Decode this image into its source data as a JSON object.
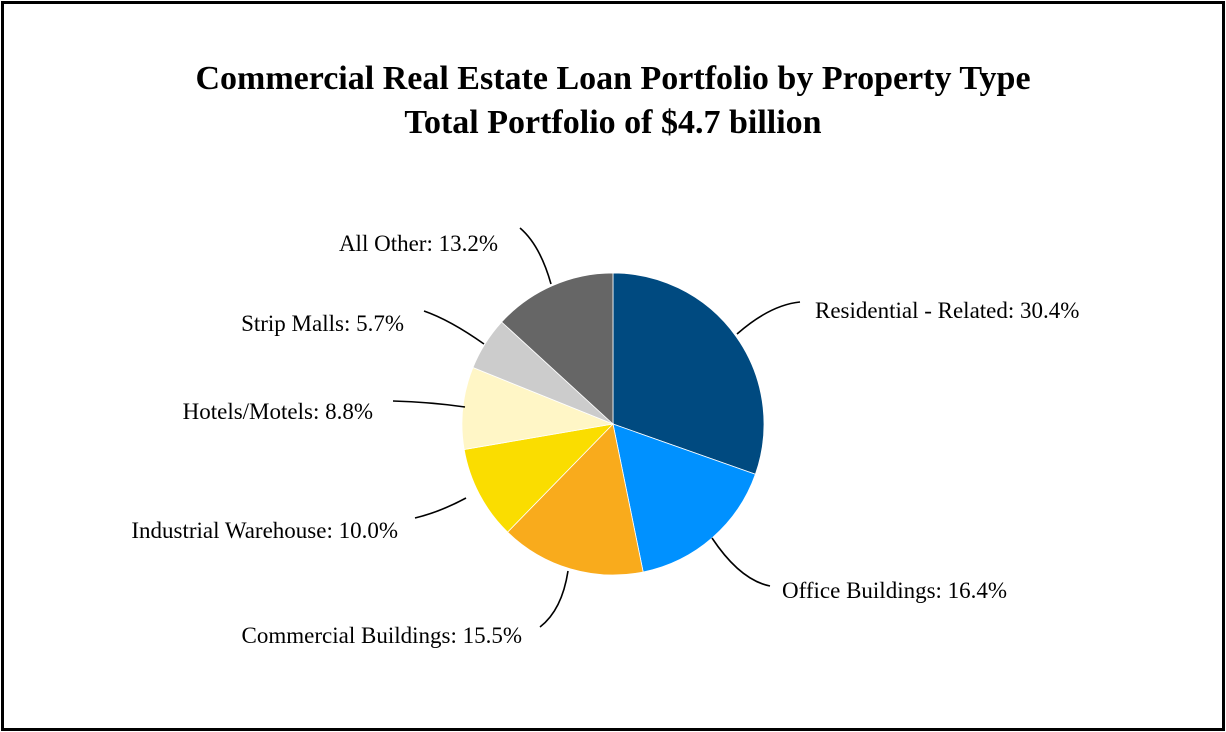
{
  "chart_data": {
    "type": "pie",
    "title": "Commercial Real Estate Loan Portfolio by Property Type",
    "subtitle": "Total Portfolio of $4.7 billion",
    "start_angle": "12 o'clock",
    "direction": "clockwise",
    "slices": [
      {
        "label": "Residential - Related",
        "value": 30.4,
        "display": "Residential - Related: 30.4%",
        "color": "#004A80"
      },
      {
        "label": "Office Buildings",
        "value": 16.4,
        "display": "Office Buildings: 16.4%",
        "color": "#0091FF"
      },
      {
        "label": "Commercial Buildings",
        "value": 15.5,
        "display": "Commercial Buildings: 15.5%",
        "color": "#F9AB1C"
      },
      {
        "label": "Industrial Warehouse",
        "value": 10.0,
        "display": "Industrial Warehouse: 10.0%",
        "color": "#FADD00"
      },
      {
        "label": "Hotels/Motels",
        "value": 8.8,
        "display": "Hotels/Motels: 8.8%",
        "color": "#FFF6C6"
      },
      {
        "label": "Strip Malls",
        "value": 5.7,
        "display": "Strip Malls: 5.7%",
        "color": "#CCCCCC"
      },
      {
        "label": "All Other",
        "value": 13.2,
        "display": "All Other: 13.2%",
        "color": "#666666"
      }
    ]
  }
}
